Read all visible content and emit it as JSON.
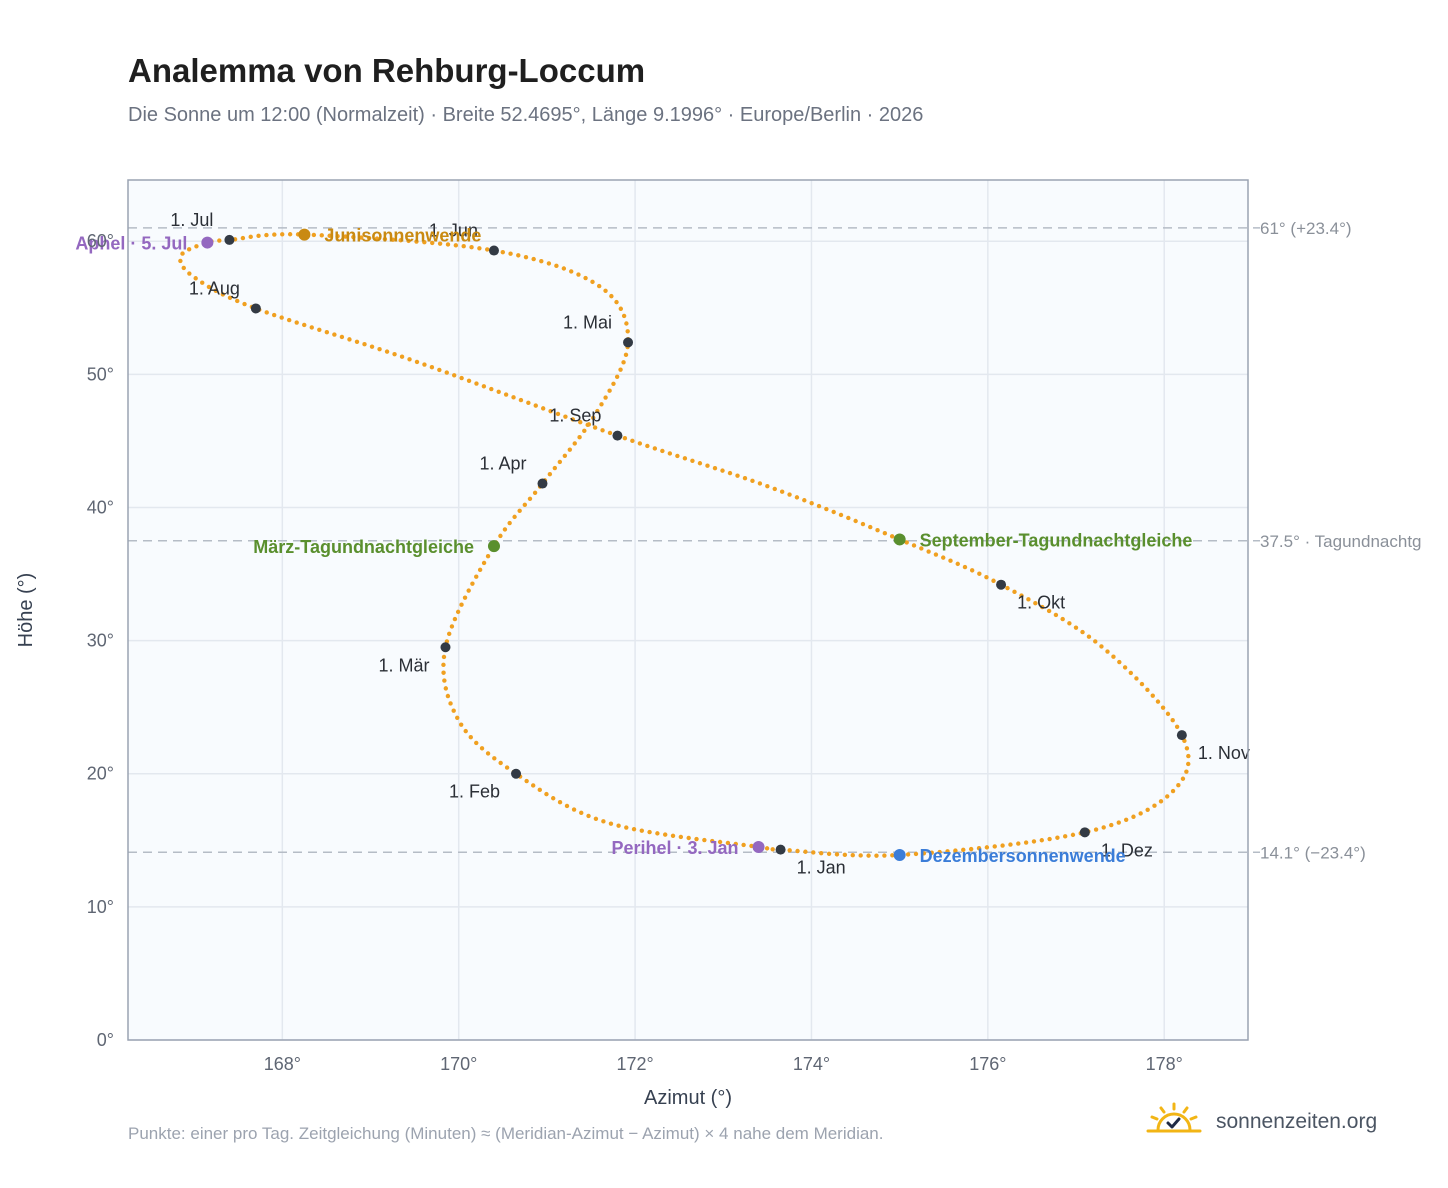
{
  "title": "Analemma von Rehburg-Loccum",
  "subtitle": "Die Sonne um 12:00 (Normalzeit) · Breite 52.4695°, Länge 9.1996° · Europe/Berlin · 2026",
  "footnote": "Punkte: einer pro Tag. Zeitgleichung (Minuten) ≈ (Meridian-Azimut − Azimut) × 4 nahe dem Meridian.",
  "brand": "sonnenzeiten.org",
  "icons": {
    "brand": "sun-check-icon"
  },
  "colors": {
    "curve": "#f0a020",
    "month_point": "#333a44",
    "solstice_summer": "#c98a12",
    "solstice_winter": "#3b7dd8",
    "equinox": "#5a8f2e",
    "apsis": "#9468c0",
    "plot_background": "#f8fbfe",
    "frame": "#9aa3b2",
    "grid": "#e3e8ef",
    "ref_line": "#b5bcc6"
  },
  "chart_data": {
    "type": "scatter",
    "xlabel": "Azimut (°)",
    "ylabel": "Höhe (°)",
    "xlim": [
      166.25,
      178.95
    ],
    "ylim": [
      0,
      64.6
    ],
    "x_ticks": [
      168,
      170,
      172,
      174,
      176,
      178
    ],
    "y_ticks": [
      0,
      10,
      20,
      30,
      40,
      50,
      60
    ],
    "x_tick_labels": [
      "168°",
      "170°",
      "172°",
      "174°",
      "176°",
      "178°"
    ],
    "y_tick_labels": [
      "0°",
      "10°",
      "20°",
      "30°",
      "40°",
      "50°",
      "60°"
    ],
    "grid": true,
    "curve_keypoints": [
      {
        "x": 173.65,
        "y": 14.3
      },
      {
        "x": 173.4,
        "y": 14.5
      },
      {
        "x": 171.7,
        "y": 16.3
      },
      {
        "x": 170.65,
        "y": 20.0
      },
      {
        "x": 170.0,
        "y": 24.0
      },
      {
        "x": 169.85,
        "y": 29.5
      },
      {
        "x": 170.4,
        "y": 37.1
      },
      {
        "x": 170.95,
        "y": 41.8
      },
      {
        "x": 171.55,
        "y": 47.0
      },
      {
        "x": 171.92,
        "y": 52.4
      },
      {
        "x": 171.6,
        "y": 56.6
      },
      {
        "x": 170.4,
        "y": 59.3
      },
      {
        "x": 168.25,
        "y": 60.5
      },
      {
        "x": 167.4,
        "y": 60.1
      },
      {
        "x": 167.15,
        "y": 59.9
      },
      {
        "x": 166.85,
        "y": 58.9
      },
      {
        "x": 167.0,
        "y": 57.3
      },
      {
        "x": 167.7,
        "y": 54.95
      },
      {
        "x": 169.5,
        "y": 51.0
      },
      {
        "x": 171.8,
        "y": 45.4
      },
      {
        "x": 173.5,
        "y": 41.6
      },
      {
        "x": 175.0,
        "y": 37.6
      },
      {
        "x": 176.15,
        "y": 34.2
      },
      {
        "x": 177.3,
        "y": 29.5
      },
      {
        "x": 178.2,
        "y": 22.9
      },
      {
        "x": 178.1,
        "y": 18.7
      },
      {
        "x": 177.1,
        "y": 15.6
      },
      {
        "x": 175.0,
        "y": 13.9
      },
      {
        "x": 173.65,
        "y": 14.3
      }
    ],
    "months": [
      {
        "label": "1. Jan",
        "x": 173.65,
        "y": 14.3,
        "label_pos": "below-right"
      },
      {
        "label": "1. Feb",
        "x": 170.65,
        "y": 20.0,
        "label_pos": "below-left"
      },
      {
        "label": "1. Mär",
        "x": 169.85,
        "y": 29.5,
        "label_pos": "below-left"
      },
      {
        "label": "1. Apr",
        "x": 170.95,
        "y": 41.8,
        "label_pos": "above-left"
      },
      {
        "label": "1. Mai",
        "x": 171.92,
        "y": 52.4,
        "label_pos": "above-left"
      },
      {
        "label": "1. Jun",
        "x": 170.4,
        "y": 59.3,
        "label_pos": "above-left"
      },
      {
        "label": "1. Jul",
        "x": 167.4,
        "y": 60.1,
        "label_pos": "above-left"
      },
      {
        "label": "1. Aug",
        "x": 167.7,
        "y": 54.95,
        "label_pos": "above-left"
      },
      {
        "label": "1. Sep",
        "x": 171.8,
        "y": 45.4,
        "label_pos": "above-left"
      },
      {
        "label": "1. Okt",
        "x": 176.15,
        "y": 34.2,
        "label_pos": "below-right"
      },
      {
        "label": "1. Nov",
        "x": 178.2,
        "y": 22.9,
        "label_pos": "below-right"
      },
      {
        "label": "1. Dez",
        "x": 177.1,
        "y": 15.6,
        "label_pos": "below-right"
      }
    ],
    "events": [
      {
        "label": "Junisonnenwende",
        "x": 168.25,
        "y": 60.5,
        "color": "#c98a12",
        "side": "right"
      },
      {
        "label": "März-Tagundnachtgleiche",
        "x": 170.4,
        "y": 37.1,
        "color": "#5a8f2e",
        "side": "left"
      },
      {
        "label": "September-Tagundnachtgleiche",
        "x": 175.0,
        "y": 37.6,
        "color": "#5a8f2e",
        "side": "right"
      },
      {
        "label": "Dezembersonnenwende",
        "x": 175.0,
        "y": 13.9,
        "color": "#3b7dd8",
        "side": "right"
      },
      {
        "label": "Perihel · 3. Jan",
        "x": 173.4,
        "y": 14.5,
        "color": "#9468c0",
        "side": "left"
      },
      {
        "label": "Aphel · 5. Jul",
        "x": 167.15,
        "y": 59.9,
        "color": "#9468c0",
        "side": "left"
      }
    ],
    "reference_lines": [
      {
        "y": 61.0,
        "label": "61° (+23.4°)"
      },
      {
        "y": 37.5,
        "label": "37.5° · Tagundnachtg"
      },
      {
        "y": 14.1,
        "label": "14.1° (−23.4°)"
      }
    ]
  }
}
